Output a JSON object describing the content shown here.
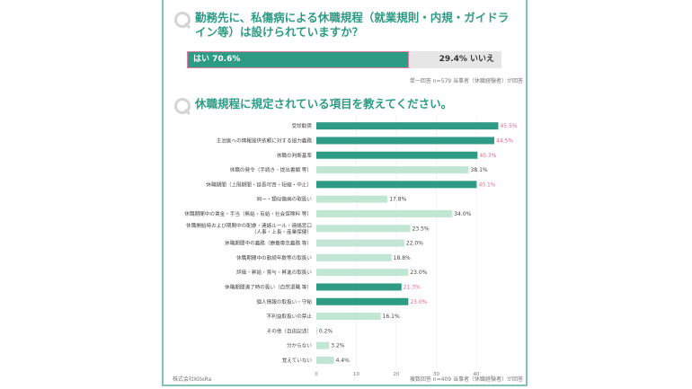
{
  "q1": {
    "title": "勤務先に、私傷病による休職規程（就業規則・内規・ガイドライン等）は設けられていますか？",
    "yes_label": "はい 70.6%",
    "no_label": "29.4% いいえ",
    "yes_pct": 70.6,
    "no_pct": 29.4,
    "note": "単一回答 n=579 当事者（休職経験者）が回答"
  },
  "q2": {
    "title": "休職規程に規定されている項目を教えてください。",
    "note": "複数回答 n=409 当事者（休職経験者）が回答"
  },
  "company": "株式会社KiteRa",
  "colors": {
    "accent": "#2e9b85",
    "light": "#c2e6d4",
    "highlight_label": "#e0668f",
    "normal_label": "#444444",
    "frame": "#7fc4b4"
  },
  "chart_data": {
    "type": "bar",
    "orientation": "horizontal",
    "title": "休職規程に規定されている項目を教えてください。",
    "xlim": [
      0,
      50
    ],
    "xticks": [
      0,
      10,
      20,
      30,
      40
    ],
    "xlabel": "",
    "ylabel": "",
    "grid": true,
    "categories": [
      [
        "受診勧奨"
      ],
      [
        "主治医への情報提供依頼に対する協力義務"
      ],
      [
        "休職の判断基準"
      ],
      [
        "休職の発令（手続き・提出書類 等）"
      ],
      [
        "休職期間（上限期間・延長可否・短縮・中止）"
      ],
      [
        "同一・類似傷病の取扱い"
      ],
      [
        "休職期間中の賃金・手当（無給・有給・社会保険料 等）"
      ],
      [
        "休職開始時および期間中の配慮・連絡ルール・連絡窓口",
        "（人事・上長・産業保健）"
      ],
      [
        "休職期間中の義務（療養専念義務 等）"
      ],
      [
        "休職期間中の勤続年数等の取扱い"
      ],
      [
        "評価・昇給・賞与・昇進の取扱い"
      ],
      [
        "休職期間満了時の扱い（自然退職 等）"
      ],
      [
        "個人情報の取扱い・守秘"
      ],
      [
        "不利益取扱いの禁止"
      ],
      [
        "その他（自由記述）"
      ],
      [
        "分からない"
      ],
      [
        "覚えていない"
      ]
    ],
    "values": [
      45.5,
      44.5,
      40.3,
      38.1,
      40.1,
      17.8,
      34.0,
      23.5,
      22.0,
      18.8,
      23.0,
      21.3,
      23.0,
      16.1,
      0.2,
      3.2,
      4.4
    ],
    "labels": [
      "45.5%",
      "44.5%",
      "40.3%",
      "38.1%",
      "40.1%",
      "17.8%",
      "34.0%",
      "23.5%",
      "22.0%",
      "18.8%",
      "23.0%",
      "21.3%",
      "23.0%",
      "16.1%",
      "0.2%",
      "3.2%",
      "4.4%"
    ],
    "highlighted": [
      true,
      true,
      true,
      false,
      true,
      false,
      false,
      false,
      false,
      false,
      false,
      true,
      true,
      false,
      false,
      false,
      false
    ]
  }
}
